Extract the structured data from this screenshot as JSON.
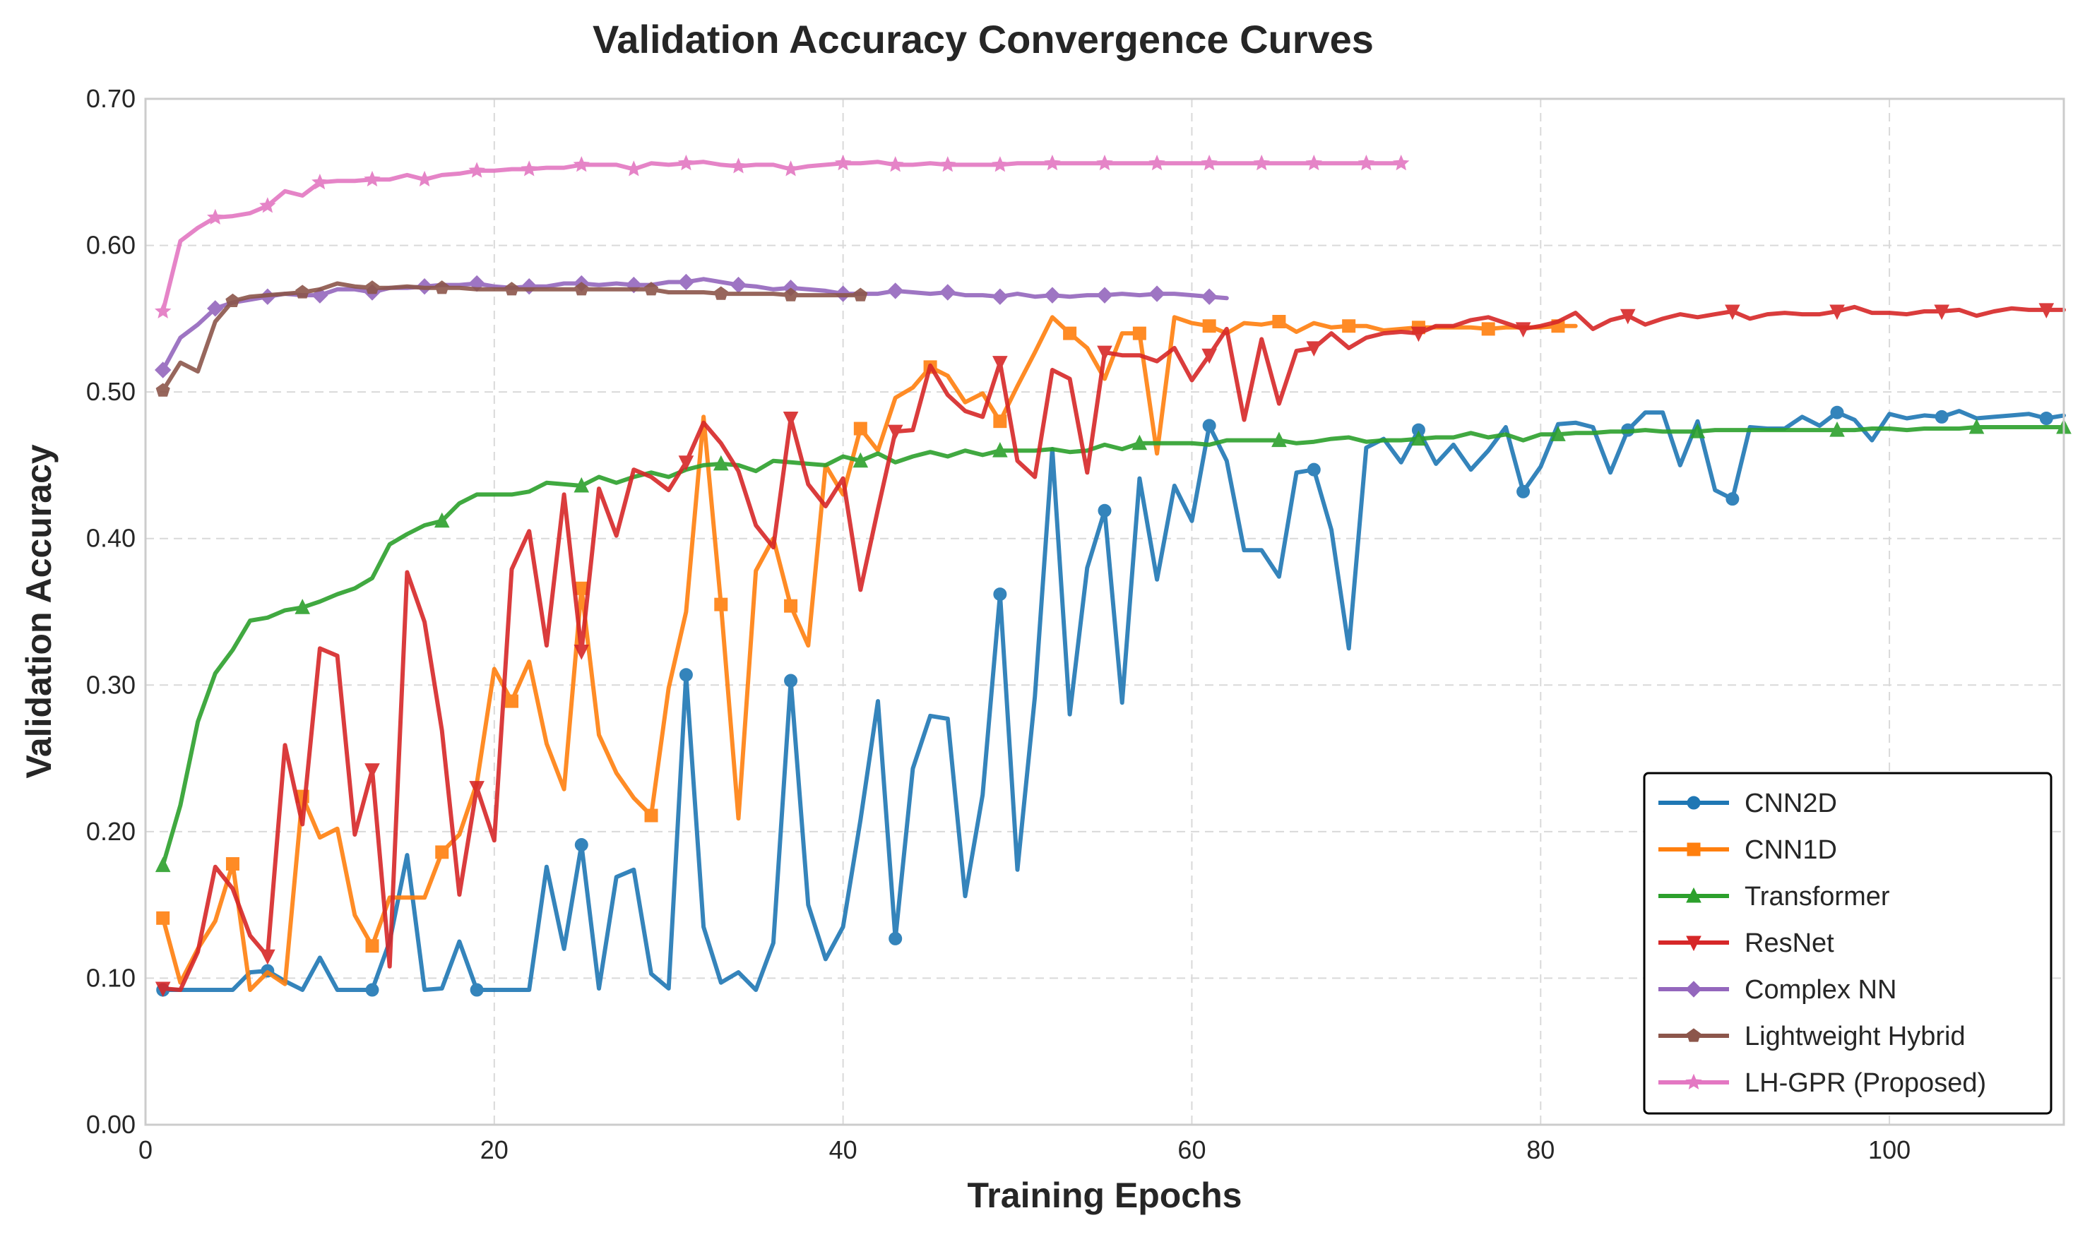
{
  "chart_data": {
    "type": "line",
    "title": "Validation Accuracy Convergence Curves",
    "xlabel": "Training Epochs",
    "ylabel": "Validation Accuracy",
    "xlim": [
      0,
      110
    ],
    "ylim": [
      0.0,
      0.7
    ],
    "xticks": [
      0,
      20,
      40,
      60,
      80,
      100
    ],
    "yticks": [
      0.0,
      0.1,
      0.2,
      0.3,
      0.4,
      0.5,
      0.6,
      0.7
    ],
    "xtick_labels": [
      "0",
      "20",
      "40",
      "60",
      "80",
      "100"
    ],
    "ytick_labels": [
      "0.00",
      "0.10",
      "0.20",
      "0.30",
      "0.40",
      "0.50",
      "0.60",
      "0.70"
    ],
    "grid": true,
    "legend_position": "lower-right",
    "series": [
      {
        "name": "CNN2D",
        "color": "#1f77b4",
        "marker": "circle",
        "x_start": 1,
        "marker_every": 6,
        "values": [
          0.092,
          0.092,
          0.092,
          0.092,
          0.092,
          0.104,
          0.105,
          0.098,
          0.092,
          0.114,
          0.092,
          0.092,
          0.092,
          0.125,
          0.184,
          0.092,
          0.093,
          0.125,
          0.092,
          0.092,
          0.092,
          0.092,
          0.176,
          0.12,
          0.191,
          0.093,
          0.169,
          0.174,
          0.103,
          0.093,
          0.307,
          0.135,
          0.097,
          0.104,
          0.092,
          0.124,
          0.303,
          0.15,
          0.113,
          0.135,
          0.208,
          0.289,
          0.127,
          0.243,
          0.279,
          0.277,
          0.156,
          0.225,
          0.362,
          0.174,
          0.292,
          0.461,
          0.28,
          0.38,
          0.419,
          0.288,
          0.441,
          0.372,
          0.436,
          0.412,
          0.477,
          0.453,
          0.392,
          0.392,
          0.374,
          0.445,
          0.447,
          0.406,
          0.325,
          0.462,
          0.468,
          0.452,
          0.474,
          0.451,
          0.464,
          0.447,
          0.46,
          0.476,
          0.432,
          0.449,
          0.478,
          0.479,
          0.476,
          0.445,
          0.474,
          0.486,
          0.486,
          0.45,
          0.48,
          0.433,
          0.427,
          0.476,
          0.475,
          0.475,
          0.483,
          0.477,
          0.486,
          0.481,
          0.467,
          0.485,
          0.482,
          0.484,
          0.483,
          0.487,
          0.482,
          0.483,
          0.484,
          0.485,
          0.482,
          0.484
        ]
      },
      {
        "name": "CNN1D",
        "color": "#ff7f0e",
        "marker": "square",
        "x_start": 1,
        "marker_every": 4,
        "values": [
          0.141,
          0.097,
          0.12,
          0.139,
          0.178,
          0.092,
          0.104,
          0.096,
          0.224,
          0.196,
          0.202,
          0.143,
          0.122,
          0.155,
          0.155,
          0.155,
          0.186,
          0.198,
          0.233,
          0.311,
          0.289,
          0.316,
          0.26,
          0.229,
          0.366,
          0.266,
          0.24,
          0.223,
          0.211,
          0.298,
          0.35,
          0.483,
          0.355,
          0.209,
          0.378,
          0.4,
          0.354,
          0.327,
          0.45,
          0.43,
          0.475,
          0.46,
          0.496,
          0.503,
          0.517,
          0.511,
          0.493,
          0.499,
          0.48,
          0.504,
          0.527,
          0.551,
          0.54,
          0.53,
          0.509,
          0.54,
          0.54,
          0.458,
          0.551,
          0.547,
          0.545,
          0.54,
          0.547,
          0.546,
          0.548,
          0.541,
          0.547,
          0.544,
          0.545,
          0.545,
          0.542,
          0.543,
          0.544,
          0.544,
          0.544,
          0.544,
          0.543,
          0.544,
          0.544,
          0.544,
          0.545,
          0.545
        ]
      },
      {
        "name": "Transformer",
        "color": "#2ca02c",
        "marker": "triangle-up",
        "x_start": 1,
        "marker_every": 8,
        "values": [
          0.177,
          0.218,
          0.275,
          0.308,
          0.324,
          0.344,
          0.346,
          0.351,
          0.353,
          0.357,
          0.362,
          0.366,
          0.373,
          0.396,
          0.403,
          0.409,
          0.412,
          0.424,
          0.43,
          0.43,
          0.43,
          0.432,
          0.438,
          0.437,
          0.436,
          0.442,
          0.438,
          0.442,
          0.445,
          0.442,
          0.447,
          0.45,
          0.451,
          0.45,
          0.446,
          0.453,
          0.452,
          0.451,
          0.45,
          0.456,
          0.453,
          0.458,
          0.452,
          0.456,
          0.459,
          0.456,
          0.46,
          0.457,
          0.46,
          0.46,
          0.46,
          0.461,
          0.459,
          0.46,
          0.464,
          0.461,
          0.465,
          0.465,
          0.465,
          0.465,
          0.464,
          0.467,
          0.467,
          0.467,
          0.467,
          0.465,
          0.466,
          0.468,
          0.469,
          0.466,
          0.467,
          0.467,
          0.468,
          0.469,
          0.469,
          0.472,
          0.469,
          0.471,
          0.467,
          0.471,
          0.471,
          0.472,
          0.472,
          0.473,
          0.473,
          0.474,
          0.473,
          0.473,
          0.473,
          0.474,
          0.474,
          0.474,
          0.474,
          0.474,
          0.474,
          0.474,
          0.474,
          0.474,
          0.475,
          0.475,
          0.474,
          0.475,
          0.475,
          0.475,
          0.476,
          0.476,
          0.476,
          0.476,
          0.476,
          0.476
        ]
      },
      {
        "name": "ResNet",
        "color": "#d62728",
        "marker": "triangle-down",
        "x_start": 1,
        "marker_every": 6,
        "values": [
          0.093,
          0.092,
          0.118,
          0.176,
          0.161,
          0.129,
          0.115,
          0.259,
          0.205,
          0.325,
          0.32,
          0.198,
          0.242,
          0.108,
          0.377,
          0.343,
          0.269,
          0.157,
          0.23,
          0.194,
          0.379,
          0.405,
          0.327,
          0.43,
          0.323,
          0.434,
          0.402,
          0.447,
          0.442,
          0.433,
          0.452,
          0.479,
          0.465,
          0.446,
          0.409,
          0.394,
          0.482,
          0.437,
          0.422,
          0.441,
          0.365,
          0.42,
          0.473,
          0.474,
          0.518,
          0.498,
          0.487,
          0.483,
          0.52,
          0.453,
          0.442,
          0.515,
          0.509,
          0.445,
          0.527,
          0.525,
          0.525,
          0.521,
          0.53,
          0.508,
          0.525,
          0.543,
          0.481,
          0.536,
          0.492,
          0.528,
          0.53,
          0.54,
          0.53,
          0.537,
          0.54,
          0.541,
          0.54,
          0.545,
          0.545,
          0.549,
          0.551,
          0.547,
          0.543,
          0.545,
          0.548,
          0.554,
          0.543,
          0.549,
          0.552,
          0.546,
          0.55,
          0.553,
          0.551,
          0.553,
          0.555,
          0.55,
          0.553,
          0.554,
          0.553,
          0.553,
          0.555,
          0.558,
          0.554,
          0.554,
          0.553,
          0.555,
          0.555,
          0.556,
          0.552,
          0.555,
          0.557,
          0.556,
          0.556,
          0.556
        ]
      },
      {
        "name": "Complex NN",
        "color": "#9467bd",
        "marker": "diamond",
        "x_start": 1,
        "marker_every": 3,
        "values": [
          0.515,
          0.537,
          0.546,
          0.557,
          0.561,
          0.563,
          0.565,
          0.567,
          0.566,
          0.566,
          0.57,
          0.57,
          0.568,
          0.571,
          0.571,
          0.572,
          0.573,
          0.573,
          0.574,
          0.572,
          0.571,
          0.572,
          0.572,
          0.574,
          0.574,
          0.573,
          0.574,
          0.573,
          0.573,
          0.575,
          0.575,
          0.577,
          0.575,
          0.573,
          0.572,
          0.57,
          0.571,
          0.57,
          0.569,
          0.567,
          0.567,
          0.567,
          0.569,
          0.568,
          0.567,
          0.568,
          0.566,
          0.566,
          0.565,
          0.567,
          0.565,
          0.566,
          0.565,
          0.566,
          0.566,
          0.567,
          0.566,
          0.567,
          0.567,
          0.566,
          0.565,
          0.564
        ]
      },
      {
        "name": "Lightweight Hybrid",
        "color": "#8c564b",
        "marker": "pentagon",
        "x_start": 1,
        "marker_every": 4,
        "values": [
          0.501,
          0.52,
          0.514,
          0.548,
          0.562,
          0.565,
          0.566,
          0.567,
          0.568,
          0.57,
          0.574,
          0.572,
          0.571,
          0.571,
          0.572,
          0.571,
          0.571,
          0.571,
          0.57,
          0.57,
          0.57,
          0.57,
          0.57,
          0.57,
          0.57,
          0.57,
          0.57,
          0.57,
          0.57,
          0.568,
          0.568,
          0.568,
          0.567,
          0.567,
          0.567,
          0.567,
          0.566,
          0.566,
          0.566,
          0.566,
          0.566
        ]
      },
      {
        "name": "LH-GPR (Proposed)",
        "color": "#e377c2",
        "marker": "star",
        "x_start": 1,
        "marker_every": 3,
        "values": [
          0.555,
          0.603,
          0.612,
          0.619,
          0.62,
          0.622,
          0.627,
          0.637,
          0.634,
          0.643,
          0.644,
          0.644,
          0.645,
          0.645,
          0.648,
          0.645,
          0.648,
          0.649,
          0.651,
          0.651,
          0.652,
          0.652,
          0.653,
          0.653,
          0.655,
          0.655,
          0.655,
          0.652,
          0.656,
          0.655,
          0.656,
          0.657,
          0.655,
          0.654,
          0.655,
          0.655,
          0.652,
          0.654,
          0.655,
          0.656,
          0.656,
          0.657,
          0.655,
          0.655,
          0.656,
          0.655,
          0.655,
          0.655,
          0.655,
          0.656,
          0.656,
          0.656,
          0.656,
          0.656,
          0.656,
          0.656,
          0.656,
          0.656,
          0.656,
          0.656,
          0.656,
          0.656,
          0.656,
          0.656,
          0.656,
          0.656,
          0.656,
          0.656,
          0.656,
          0.656,
          0.656,
          0.656
        ]
      }
    ]
  }
}
